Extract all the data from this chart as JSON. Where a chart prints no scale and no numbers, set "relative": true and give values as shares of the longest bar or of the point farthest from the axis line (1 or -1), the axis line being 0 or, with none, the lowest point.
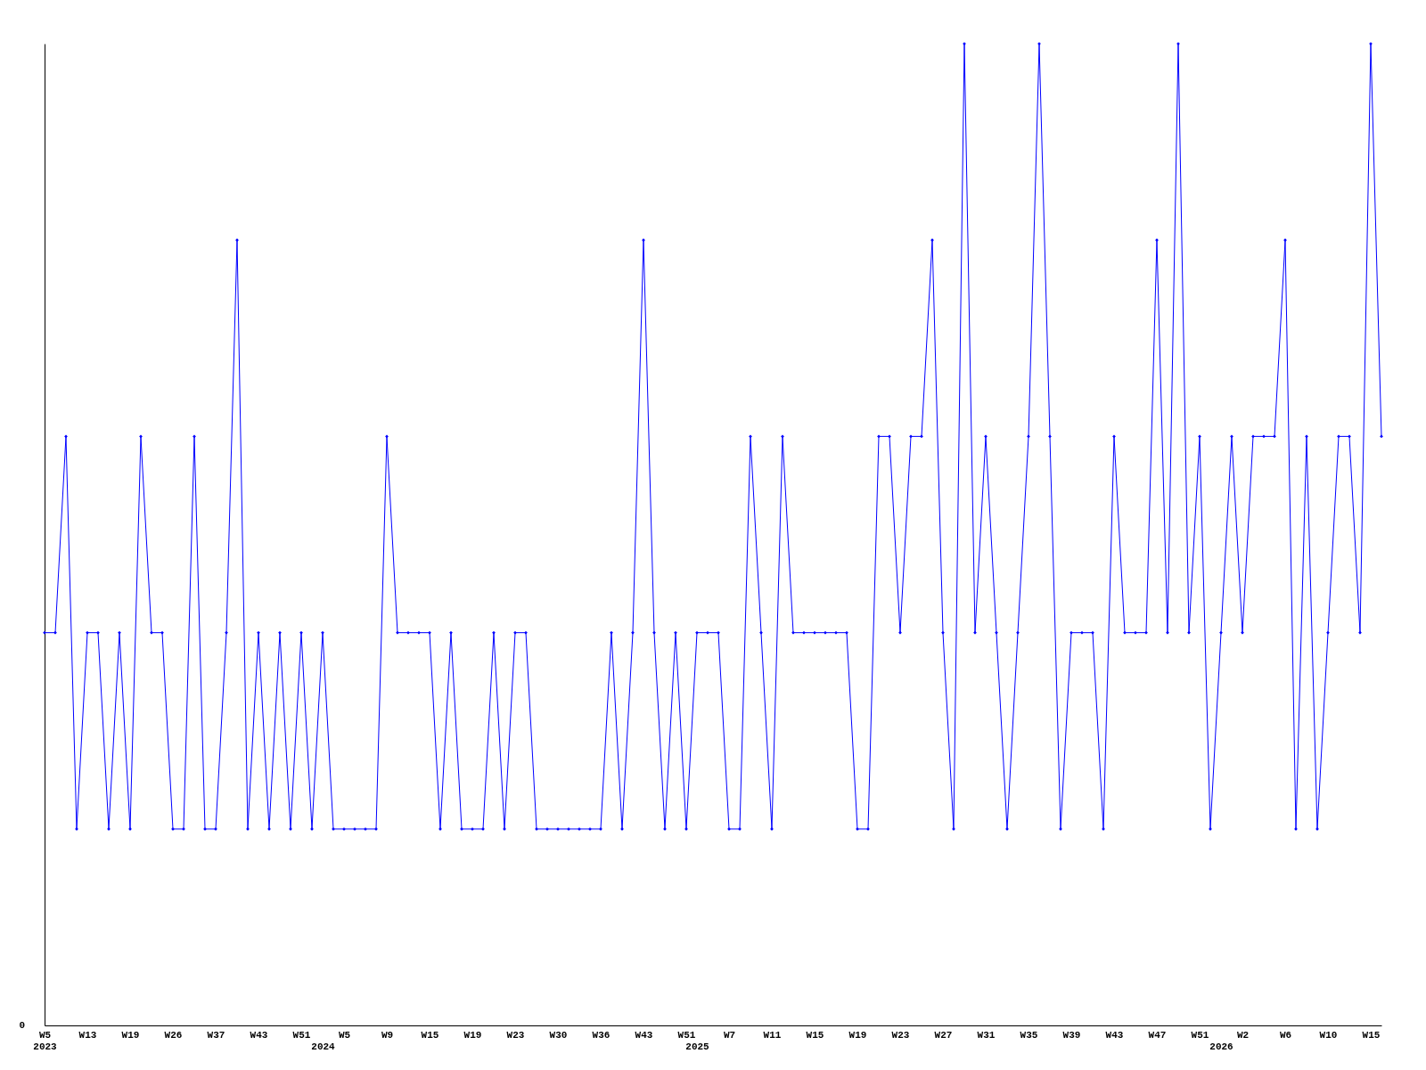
{
  "chart_data": {
    "type": "line",
    "relative": true,
    "marker": "diamond",
    "line_style": "solid",
    "categories": [
      "W5\n2023",
      null,
      null,
      null,
      "W13",
      null,
      null,
      null,
      "W19",
      null,
      null,
      null,
      "W26",
      null,
      null,
      null,
      "W37",
      null,
      null,
      null,
      "W43",
      null,
      null,
      null,
      "W51",
      null,
      "\n2024",
      null,
      "W5",
      null,
      null,
      null,
      "W9",
      null,
      null,
      null,
      "W15",
      null,
      null,
      null,
      "W19",
      null,
      null,
      null,
      "W23",
      null,
      null,
      null,
      "W30",
      null,
      null,
      null,
      "W36",
      null,
      null,
      null,
      "W43",
      null,
      null,
      null,
      "W51",
      "\n2025",
      null,
      null,
      "W7",
      null,
      null,
      null,
      "W11",
      null,
      null,
      null,
      "W15",
      null,
      null,
      null,
      "W19",
      null,
      null,
      null,
      "W23",
      null,
      null,
      null,
      "W27",
      null,
      null,
      null,
      "W31",
      null,
      null,
      null,
      "W35",
      null,
      null,
      null,
      "W39",
      null,
      null,
      null,
      "W43",
      null,
      null,
      null,
      "W47",
      null,
      null,
      null,
      "W51",
      null,
      "\n2026",
      null,
      "W2",
      null,
      null,
      null,
      "W6",
      null,
      null,
      null,
      "W10",
      null,
      null,
      null,
      "W15",
      null
    ],
    "series": [
      {
        "color": "#0000ff",
        "values": [
          0.4,
          0.4,
          0.6,
          0.2,
          0.4,
          0.4,
          0.2,
          0.4,
          0.2,
          0.6,
          0.4,
          0.4,
          0.2,
          0.2,
          0.6,
          0.2,
          0.2,
          0.4,
          0.8,
          0.2,
          0.4,
          0.2,
          0.4,
          0.2,
          0.4,
          0.2,
          0.4,
          0.2,
          0.2,
          0.2,
          0.2,
          0.2,
          0.6,
          0.4,
          0.4,
          0.4,
          0.4,
          0.2,
          0.4,
          0.2,
          0.2,
          0.2,
          0.4,
          0.2,
          0.4,
          0.4,
          0.2,
          0.2,
          0.2,
          0.2,
          0.2,
          0.2,
          0.2,
          0.4,
          0.2,
          0.4,
          0.8,
          0.4,
          0.2,
          0.4,
          0.2,
          0.4,
          0.4,
          0.4,
          0.2,
          0.2,
          0.6,
          0.4,
          0.2,
          0.6,
          0.4,
          0.4,
          0.4,
          0.4,
          0.4,
          0.4,
          0.2,
          0.2,
          0.6,
          0.6,
          0.4,
          0.6,
          0.6,
          0.8,
          0.4,
          0.2,
          1,
          0.4,
          0.6,
          0.4,
          0.2,
          0.4,
          0.6,
          1,
          0.6,
          0.2,
          0.4,
          0.4,
          0.4,
          0.2,
          0.6,
          0.4,
          0.4,
          0.4,
          0.8,
          0.4,
          1,
          0.4,
          0.6,
          0.2,
          0.4,
          0.6,
          0.4,
          0.6,
          0.6,
          0.6,
          0.8,
          0.2,
          0.6,
          0.2,
          0.4,
          0.6,
          0.6,
          0.4,
          1,
          0.6
        ]
      }
    ],
    "annotations": [
      "0"
    ]
  }
}
